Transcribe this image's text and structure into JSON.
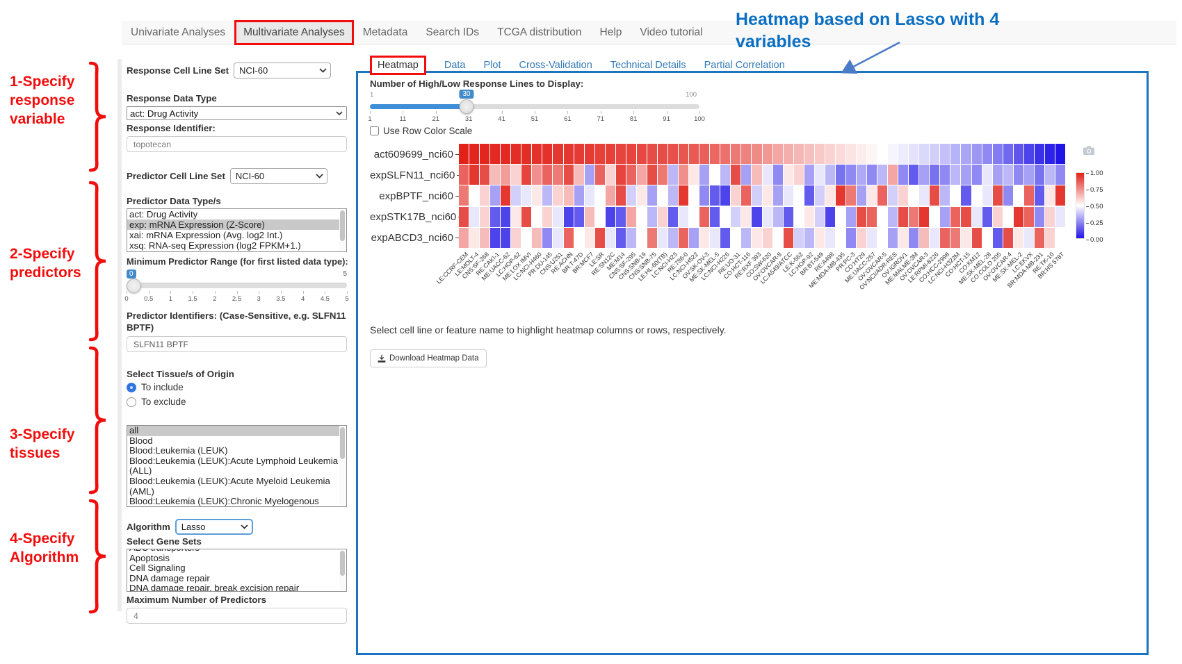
{
  "colors": {
    "annotation_red": "#f20d0d",
    "annotation_blue": "#0a6fc2",
    "panel_border": "#1b74c2",
    "link_blue": "#337ab7",
    "slider_blue": "#428bca",
    "heat_high": "#e22119",
    "heat_low": "#2114e7"
  },
  "annotations": {
    "left": [
      {
        "lines": [
          "1-Specify",
          "response",
          "variable"
        ]
      },
      {
        "lines": [
          "2-Specify",
          "predictors"
        ]
      },
      {
        "lines": [
          "3-Specify",
          "tissues"
        ]
      },
      {
        "lines": [
          "4-Specify",
          "Algorithm"
        ]
      }
    ],
    "heading": {
      "line1": "Heatmap based on Lasso with 4",
      "line2": "variables"
    }
  },
  "nav": {
    "items": [
      "Univariate Analyses",
      "Multivariate Analyses",
      "Metadata",
      "Search IDs",
      "TCGA distribution",
      "Help",
      "Video tutorial"
    ],
    "active": "Multivariate Analyses"
  },
  "sidebar": {
    "response_cell_line_set": {
      "label": "Response Cell Line Set",
      "value": "NCI-60"
    },
    "response_data_type": {
      "label": "Response Data Type",
      "value": "act: Drug Activity"
    },
    "response_identifier": {
      "label": "Response Identifier:",
      "value": "topotecan"
    },
    "predictor_cell_line_set": {
      "label": "Predictor Cell Line Set",
      "value": "NCI-60"
    },
    "predictor_data_types": {
      "label": "Predictor Data Type/s",
      "options": [
        "act: Drug Activity",
        "exp: mRNA Expression (Z-Score)",
        "xai: mRNA Expression (Avg. log2 Int.)",
        "xsq: RNA-seq Expression (log2 FPKM+1.)"
      ],
      "selected": "exp: mRNA Expression (Z-Score)"
    },
    "min_predictor_range": {
      "label": "Minimum Predictor Range (for first listed data type):",
      "value": "0",
      "min": "0",
      "max": "5",
      "ticks": [
        "0",
        "0.5",
        "1",
        "1.5",
        "2",
        "2.5",
        "3",
        "3.5",
        "4",
        "4.5",
        "5"
      ]
    },
    "predictor_identifiers": {
      "label": "Predictor Identifiers: (Case-Sensitive, e.g. SLFN11 BPTF)",
      "value": "SLFN11 BPTF"
    },
    "tissues": {
      "label": "Select Tissue/s of Origin",
      "radios": [
        {
          "label": "To include",
          "checked": true
        },
        {
          "label": "To exclude",
          "checked": false
        }
      ],
      "options": [
        "all",
        "Blood",
        "Blood:Leukemia (LEUK)",
        "Blood:Leukemia (LEUK):Acute Lymphoid Leukemia (ALL)",
        "Blood:Leukemia (LEUK):Acute Myeloid Leukemia (AML)",
        "Blood:Leukemia (LEUK):Chronic Myelogenous Leukemia (CML)"
      ],
      "selected": "all"
    },
    "algorithm": {
      "label": "Algorithm",
      "value": "Lasso"
    },
    "gene_sets": {
      "label": "Select Gene Sets",
      "options": [
        "ABC transporters",
        "Apoptosis",
        "Cell Signaling",
        "DNA damage repair",
        "DNA damage repair, break excision repair"
      ]
    },
    "max_predictors": {
      "label": "Maximum Number of Predictors",
      "value": "4"
    }
  },
  "main": {
    "tabs": [
      "Heatmap",
      "Data",
      "Plot",
      "Cross-Validation",
      "Technical Details",
      "Partial Correlation"
    ],
    "active_tab": "Heatmap",
    "slider": {
      "label": "Number of High/Low Response Lines to Display:",
      "value": "30",
      "min": "1",
      "max": "100",
      "ticks": [
        "1",
        "11",
        "21",
        "31",
        "41",
        "51",
        "61",
        "71",
        "81",
        "91",
        "100"
      ]
    },
    "row_color_scale_label": "Use Row Color Scale",
    "hint": "Select cell line or feature name to highlight heatmap columns or rows, respectively.",
    "download_button": "Download Heatmap Data"
  },
  "chart_data": {
    "type": "heatmap",
    "rows": [
      "act609699_nci60",
      "expSLFN11_nci60",
      "expBPTF_nci60",
      "expSTK17B_nci60",
      "expABCD3_nci60"
    ],
    "columns": [
      "LE:CCRF-CEM",
      "LE:MOLT-4",
      "CNS:SF-268",
      "RE:CAKI-1",
      "ME:UACC-62",
      "LC:HOP-62",
      "ME:LOX IMVI",
      "LC:NCI-H460",
      "PR:DU-145",
      "CNS:U251",
      "RE:ACHN",
      "BR:T-47D",
      "BR:MCF7",
      "LE:SR",
      "RE:SN12C",
      "ME:M14",
      "CNS:SF-295",
      "CNS:SNB-19",
      "CNS:SNB-75",
      "LE:HL-60(TB)",
      "LC:NCI-H23",
      "RE:786-0",
      "LC:NCI-H522",
      "OV:SK-OV-3",
      "ME:SK-MEL-5",
      "LC:NCI-H226",
      "RE:UO-31",
      "CO:HCT-116",
      "RE:RXF 393",
      "CO:SW-620",
      "OV:OVCAR-8",
      "LC:A549/ATCC",
      "LE:K-562",
      "LC:HOP-92",
      "BR:BT-549",
      "RE:A498",
      "ME:MDA-MB-435",
      "PR:PC-3",
      "CO:HT29",
      "ME:UACC-257",
      "OV:OVCAR-5",
      "OV:NCI/ADR-RES",
      "OV:IGROV1",
      "ME:MALME-3M",
      "OV:OVCAR-3",
      "LE:RPMI-8226",
      "CO:HCC-2998",
      "LC:NCI-H322M",
      "CO:HCT-15",
      "CO:KM12",
      "ME:SK-MEL-28",
      "CO:COLO 205",
      "OV:OVCAR-4",
      "ME:SK-MEL-2",
      "LC:EKVX",
      "BR:MDA-MB-231",
      "RE:TK-10",
      "BR:HS 578T"
    ],
    "value_range": [
      0,
      1
    ],
    "colorbar_ticks": [
      "1.00",
      "0.75",
      "0.50",
      "0.25",
      "0.00"
    ],
    "values": [
      [
        1.0,
        0.99,
        0.99,
        0.98,
        0.98,
        0.97,
        0.97,
        0.96,
        0.96,
        0.95,
        0.95,
        0.94,
        0.94,
        0.93,
        0.93,
        0.92,
        0.92,
        0.91,
        0.9,
        0.9,
        0.89,
        0.88,
        0.87,
        0.86,
        0.84,
        0.82,
        0.8,
        0.78,
        0.76,
        0.73,
        0.7,
        0.68,
        0.66,
        0.64,
        0.62,
        0.6,
        0.58,
        0.56,
        0.54,
        0.52,
        0.5,
        0.48,
        0.46,
        0.44,
        0.42,
        0.4,
        0.37,
        0.34,
        0.31,
        0.28,
        0.25,
        0.22,
        0.18,
        0.14,
        0.1,
        0.06,
        0.03,
        0.0
      ],
      [
        0.85,
        0.95,
        0.9,
        0.65,
        0.72,
        0.6,
        0.92,
        0.75,
        0.85,
        0.8,
        0.9,
        0.65,
        0.3,
        0.85,
        0.6,
        0.92,
        0.85,
        0.7,
        0.9,
        0.8,
        0.35,
        0.75,
        0.55,
        0.3,
        0.5,
        0.35,
        0.9,
        0.3,
        0.65,
        0.45,
        0.25,
        0.55,
        0.6,
        0.3,
        0.45,
        0.35,
        0.2,
        0.25,
        0.32,
        0.25,
        0.35,
        0.7,
        0.25,
        0.15,
        0.3,
        0.2,
        0.25,
        0.35,
        0.3,
        0.25,
        0.45,
        0.3,
        0.35,
        0.25,
        0.3,
        0.2,
        0.35,
        0.25
      ],
      [
        0.8,
        0.5,
        0.6,
        0.3,
        0.95,
        0.4,
        0.45,
        0.55,
        0.35,
        0.6,
        0.65,
        0.3,
        0.45,
        0.5,
        0.7,
        0.9,
        0.4,
        0.55,
        0.3,
        0.5,
        0.35,
        0.95,
        0.5,
        0.25,
        0.15,
        0.1,
        0.6,
        0.85,
        0.4,
        0.55,
        0.3,
        0.45,
        0.5,
        0.15,
        0.4,
        0.55,
        0.95,
        0.8,
        0.3,
        0.55,
        0.85,
        0.4,
        0.6,
        0.5,
        0.45,
        0.9,
        0.35,
        0.5,
        0.15,
        0.5,
        0.45,
        0.9,
        0.25,
        0.5,
        0.85,
        0.15,
        0.55,
        0.95
      ],
      [
        0.9,
        0.45,
        0.6,
        0.15,
        0.1,
        0.55,
        0.9,
        0.5,
        0.6,
        0.45,
        0.1,
        0.15,
        0.65,
        0.5,
        0.1,
        0.15,
        0.7,
        0.5,
        0.35,
        0.6,
        0.15,
        0.45,
        0.5,
        0.85,
        0.15,
        0.5,
        0.4,
        0.55,
        0.1,
        0.45,
        0.35,
        0.15,
        0.5,
        0.55,
        0.4,
        0.1,
        0.5,
        0.3,
        0.9,
        0.85,
        0.5,
        0.35,
        0.9,
        0.8,
        0.95,
        0.5,
        0.3,
        0.85,
        0.9,
        0.45,
        0.15,
        0.6,
        0.5,
        0.95,
        0.85,
        0.25,
        0.6,
        0.45
      ],
      [
        0.7,
        0.55,
        0.65,
        0.1,
        0.1,
        0.6,
        0.5,
        0.65,
        0.25,
        0.45,
        0.85,
        0.5,
        0.55,
        0.9,
        0.45,
        0.15,
        0.35,
        0.5,
        0.8,
        0.45,
        0.35,
        0.85,
        0.3,
        0.55,
        0.45,
        0.15,
        0.5,
        0.35,
        0.55,
        0.6,
        0.5,
        0.9,
        0.4,
        0.35,
        0.55,
        0.45,
        0.5,
        0.25,
        0.6,
        0.45,
        0.5,
        0.3,
        0.55,
        0.25,
        0.65,
        0.45,
        0.85,
        0.8,
        0.55,
        0.9,
        0.5,
        0.15,
        0.9,
        0.55,
        0.45,
        0.85,
        0.6,
        0.5
      ]
    ]
  }
}
